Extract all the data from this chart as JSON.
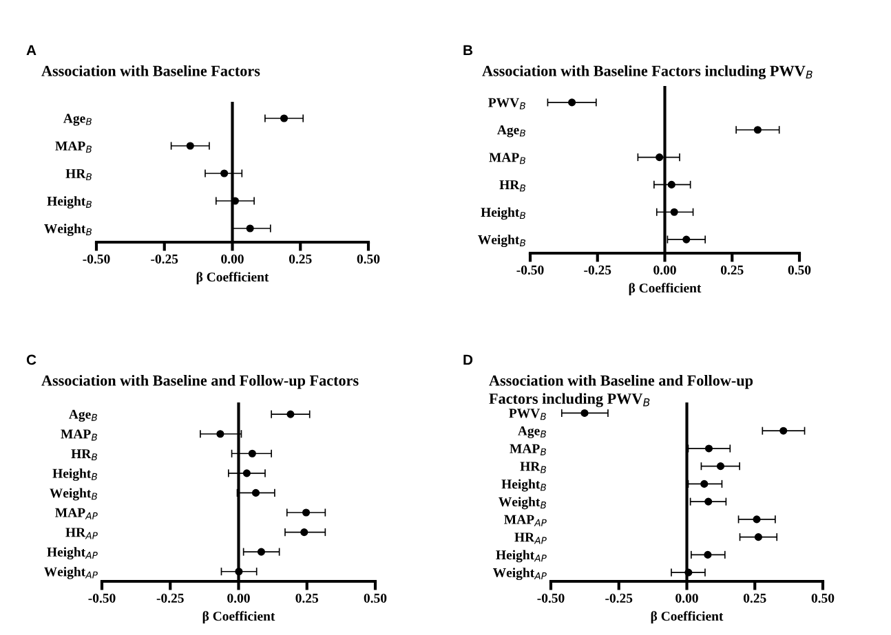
{
  "chart_data": [
    {
      "type": "scatter",
      "orientation": "horizontal",
      "title": "Association with Baseline Factors",
      "annotations": [
        "A"
      ],
      "xlabel": "β Coefficient",
      "categories": [
        "Age$_{B}$",
        "MAP$_{B}$",
        "HR$_{B}$",
        "Height$_{B}$",
        "Weight$_{B}$"
      ],
      "series": [
        {
          "color": "#000000",
          "values": [
            0.19,
            -0.155,
            -0.03,
            0.01,
            0.065
          ],
          "errors": [
            [
              0.12,
              0.26
            ],
            [
              -0.225,
              -0.085
            ],
            [
              -0.1,
              0.035
            ],
            [
              -0.06,
              0.08
            ],
            [
              0.0,
              0.14
            ]
          ]
        }
      ],
      "xlim": [
        -0.5,
        0.5
      ],
      "xticks": [
        {
          "value": -0.5,
          "label": "-0.50"
        },
        {
          "value": -0.25,
          "label": "-0.25"
        },
        {
          "value": 0,
          "label": "0.00"
        },
        {
          "value": 0.25,
          "label": "0.25"
        },
        {
          "value": 0.5,
          "label": "0.50"
        }
      ],
      "ref_lines": [
        {
          "axis": "x",
          "value": 0,
          "color": "#000000"
        }
      ],
      "marker": "circle",
      "grid": false,
      "legend": false
    },
    {
      "type": "scatter",
      "orientation": "horizontal",
      "title": "Association with Baseline Factors including PWV$_{B}$",
      "annotations": [
        "B"
      ],
      "xlabel": "β Coefficient",
      "categories": [
        "PWV$_{B}$",
        "Age$_{B}$",
        "MAP$_{B}$",
        "HR$_{B}$",
        "Height$_{B}$",
        "Weight$_{B}$"
      ],
      "series": [
        {
          "color": "#000000",
          "values": [
            -0.345,
            0.345,
            -0.02,
            0.025,
            0.035,
            0.08
          ],
          "errors": [
            [
              -0.435,
              -0.255
            ],
            [
              0.265,
              0.425
            ],
            [
              -0.1,
              0.055
            ],
            [
              -0.04,
              0.095
            ],
            [
              -0.03,
              0.105
            ],
            [
              0.01,
              0.15
            ]
          ]
        }
      ],
      "xlim": [
        -0.5,
        0.5
      ],
      "xticks": [
        {
          "value": -0.5,
          "label": "-0.50"
        },
        {
          "value": -0.25,
          "label": "-0.25"
        },
        {
          "value": 0,
          "label": "0.00"
        },
        {
          "value": 0.25,
          "label": "0.25"
        },
        {
          "value": 0.5,
          "label": "0.50"
        }
      ],
      "ref_lines": [
        {
          "axis": "x",
          "value": 0,
          "color": "#000000"
        }
      ],
      "marker": "circle",
      "grid": false,
      "legend": false
    },
    {
      "type": "scatter",
      "orientation": "horizontal",
      "title": "Association with Baseline and Follow-up Factors",
      "annotations": [
        "C"
      ],
      "xlabel": "β Coefficient",
      "categories": [
        "Age$_{B}$",
        "MAP$_{B}$",
        "HR$_{B}$",
        "Height$_{B}$",
        "Weight$_{B}$",
        "MAP$_{AP}$",
        "HR$_{AP}$",
        "Height$_{AP}$",
        "Weight$_{AP}$"
      ],
      "series": [
        {
          "color": "#000000",
          "values": [
            0.19,
            -0.067,
            0.05,
            0.03,
            0.063,
            0.247,
            0.24,
            0.083,
            0.001
          ],
          "errors": [
            [
              0.12,
              0.26
            ],
            [
              -0.14,
              0.01
            ],
            [
              -0.025,
              0.12
            ],
            [
              -0.037,
              0.097
            ],
            [
              -0.005,
              0.132
            ],
            [
              0.177,
              0.317
            ],
            [
              0.17,
              0.317
            ],
            [
              0.018,
              0.149
            ],
            [
              -0.063,
              0.066
            ]
          ]
        }
      ],
      "xlim": [
        -0.5,
        0.5
      ],
      "xticks": [
        {
          "value": -0.5,
          "label": "-0.50"
        },
        {
          "value": -0.25,
          "label": "-0.25"
        },
        {
          "value": 0,
          "label": "0.00"
        },
        {
          "value": 0.25,
          "label": "0.25"
        },
        {
          "value": 0.5,
          "label": "0.50"
        }
      ],
      "ref_lines": [
        {
          "axis": "x",
          "value": 0,
          "color": "#000000"
        }
      ],
      "marker": "circle",
      "grid": false,
      "legend": false
    },
    {
      "type": "scatter",
      "orientation": "horizontal",
      "title": "Association with Baseline and Follow-up\nFactors including PWV$_{B}$",
      "annotations": [
        "D"
      ],
      "xlabel": "β Coefficient",
      "categories": [
        "PWV$_{B}$",
        "Age$_{B}$",
        "MAP$_{B}$",
        "HR$_{B}$",
        "Height$_{B}$",
        "Weight$_{B}$",
        "MAP$_{AP}$",
        "HR$_{AP}$",
        "Height$_{AP}$",
        "Weight$_{AP}$"
      ],
      "series": [
        {
          "color": "#000000",
          "values": [
            -0.376,
            0.355,
            0.081,
            0.124,
            0.064,
            0.079,
            0.257,
            0.263,
            0.077,
            0.006
          ],
          "errors": [
            [
              -0.46,
              -0.29
            ],
            [
              0.278,
              0.433
            ],
            [
              0.005,
              0.159
            ],
            [
              0.053,
              0.194
            ],
            [
              0.005,
              0.129
            ],
            [
              0.013,
              0.144
            ],
            [
              0.19,
              0.325
            ],
            [
              0.195,
              0.331
            ],
            [
              0.016,
              0.14
            ],
            [
              -0.057,
              0.067
            ]
          ]
        }
      ],
      "xlim": [
        -0.5,
        0.5
      ],
      "xticks": [
        {
          "value": -0.5,
          "label": "-0.50"
        },
        {
          "value": -0.25,
          "label": "-0.25"
        },
        {
          "value": 0,
          "label": "0.00"
        },
        {
          "value": 0.25,
          "label": "0.25"
        },
        {
          "value": 0.5,
          "label": "0.50"
        }
      ],
      "ref_lines": [
        {
          "axis": "x",
          "value": 0,
          "color": "#000000"
        }
      ],
      "marker": "circle",
      "grid": false,
      "legend": false
    }
  ]
}
